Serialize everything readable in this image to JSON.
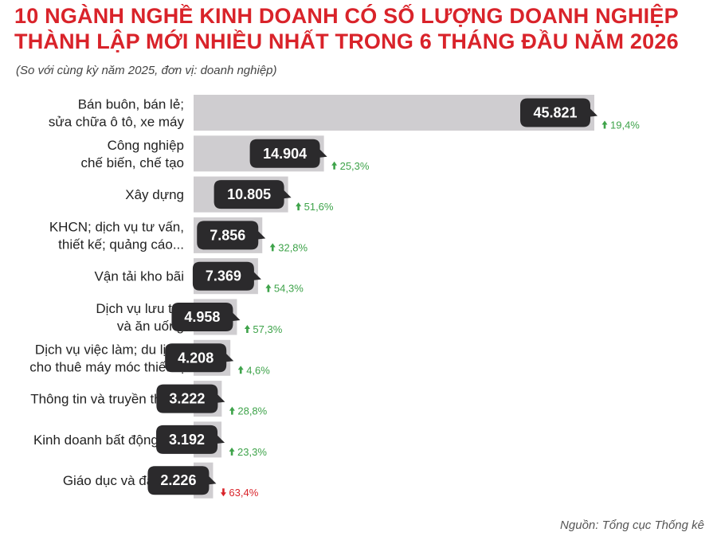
{
  "title": {
    "line1": "10 NGÀNH NGHỀ KINH DOANH CÓ SỐ LƯỢNG DOANH NGHIỆP",
    "line2": "THÀNH LẬP MỚI NHIỀU NHẤT TRONG 6 THÁNG ĐẦU NĂM 2026"
  },
  "subtitle": "(So với cùng kỳ năm 2025, đơn vị: doanh nghiệp)",
  "source": "Nguồn: Tổng cục Thống kê",
  "colors": {
    "title": "#d9232a",
    "bar": "#cfcdd0",
    "label_bubble": "#2b2a2c",
    "increase": "#3ea34a",
    "decrease": "#d9232a"
  },
  "chart_data": {
    "type": "bar",
    "orientation": "horizontal",
    "categories": [
      [
        "Bán buôn, bán lẻ;",
        "sửa chữa ô tô, xe máy"
      ],
      [
        "Công nghiệp",
        "chế biến, chế tạo"
      ],
      [
        "Xây dựng"
      ],
      [
        "KHCN; dịch vụ tư vấn,",
        "thiết kế; quảng cáo..."
      ],
      [
        "Vận tải kho bãi"
      ],
      [
        "Dịch vụ lưu trú",
        "và ăn uống"
      ],
      [
        "Dịch vụ việc làm; du lịch;",
        "cho thuê máy móc thiết bị"
      ],
      [
        "Thông tin và truyền thông"
      ],
      [
        "Kinh doanh bất động sản"
      ],
      [
        "Giáo dục và đào tạo"
      ]
    ],
    "values": [
      45821,
      14904,
      10805,
      7856,
      7369,
      4958,
      4208,
      3222,
      3192,
      2226
    ],
    "value_labels": [
      "45.821",
      "14.904",
      "10.805",
      "7.856",
      "7.369",
      "4.958",
      "4.208",
      "3.222",
      "3.192",
      "2.226"
    ],
    "changes": [
      "19,4%",
      "25,3%",
      "51,6%",
      "32,8%",
      "54,3%",
      "57,3%",
      "4,6%",
      "28,8%",
      "23,3%",
      "63,4%"
    ],
    "change_direction": [
      "up",
      "up",
      "up",
      "up",
      "up",
      "up",
      "up",
      "up",
      "up",
      "down"
    ],
    "xlim": [
      0,
      45821
    ]
  }
}
